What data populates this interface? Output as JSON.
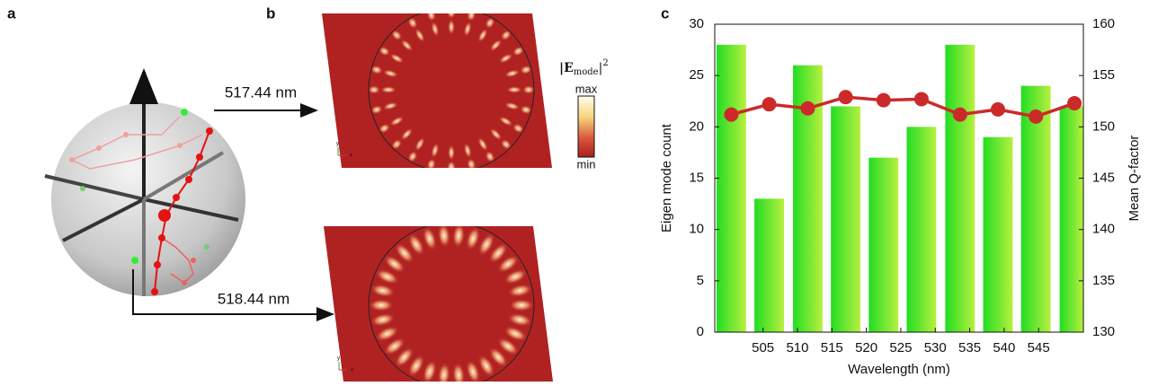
{
  "panels": {
    "a": {
      "label": "a",
      "arrow_top": "517.44 nm",
      "arrow_bottom": "518.44 nm"
    },
    "b": {
      "label": "b",
      "colorbar_max": "max",
      "colorbar_min": "min",
      "colorbar_title": {
        "open": "|E",
        "sub": "mode",
        "close": "|",
        "sup": "2"
      },
      "axis_glyph": {
        "y": "y",
        "x": "x"
      }
    },
    "c": {
      "label": "c"
    }
  },
  "chart_data": {
    "type": "bar",
    "x": [
      500.4,
      505.9,
      511.5,
      517.0,
      522.5,
      528.0,
      533.6,
      539.1,
      544.6,
      550.2
    ],
    "xlabel": "Wavelength (nm)",
    "ylabel": "Eigen mode count",
    "y2label": "Mean Q-factor",
    "xlim": [
      498,
      551.5
    ],
    "xticks": [
      505,
      510,
      515,
      520,
      525,
      530,
      535,
      540,
      545
    ],
    "ylim": [
      0,
      30
    ],
    "yticks": [
      0,
      5,
      10,
      15,
      20,
      25,
      30
    ],
    "y2lim": [
      130,
      160
    ],
    "y2ticks": [
      130,
      135,
      140,
      145,
      150,
      155,
      160
    ],
    "series": [
      {
        "name": "Eigen mode count",
        "type": "bar",
        "color": "#22dd22",
        "values": [
          28,
          13,
          26,
          22,
          17,
          20,
          28,
          19,
          24,
          22
        ]
      },
      {
        "name": "Mean Q-factor",
        "type": "line",
        "axis": "y2",
        "color": "#cc2a2a",
        "values": [
          151.2,
          152.2,
          151.8,
          152.9,
          152.6,
          152.7,
          151.2,
          151.7,
          151.0,
          152.3
        ]
      }
    ]
  }
}
